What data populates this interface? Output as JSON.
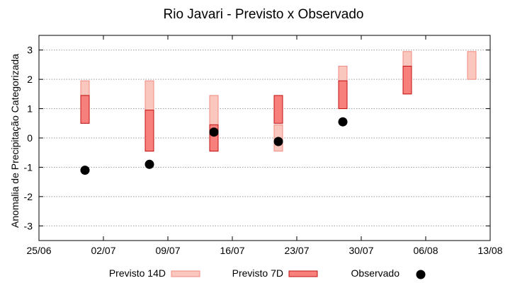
{
  "chart_data": {
    "type": "range-bars-with-points",
    "title": "Rio Javari - Previsto x Observado",
    "ylabel": "Anomalia de Precipitação Categorizada",
    "xlabel": "",
    "x_ticks": [
      "25/06",
      "02/07",
      "09/07",
      "16/07",
      "23/07",
      "30/07",
      "06/08",
      "13/08"
    ],
    "y_ticks": [
      "3",
      "2",
      "1",
      "0",
      "-1",
      "-2",
      "-3"
    ],
    "xlim": [
      "2024-06-25",
      "2024-08-13"
    ],
    "ylim": [
      -3.5,
      3.5
    ],
    "grid": true,
    "legend_position": "bottom",
    "series": [
      {
        "name": "Previsto 14D",
        "color": "#f9c7be",
        "edge": "#f08a82",
        "points": [
          {
            "x": "2024-06-30",
            "low": 0.5,
            "high": 1.95
          },
          {
            "x": "2024-07-07",
            "low": -0.45,
            "high": 1.95
          },
          {
            "x": "2024-07-14",
            "low": -0.45,
            "high": 1.45
          },
          {
            "x": "2024-07-21",
            "low": -0.45,
            "high": 0.45
          },
          {
            "x": "2024-07-28",
            "low": 1.0,
            "high": 2.45
          },
          {
            "x": "2024-08-04",
            "low": 1.5,
            "high": 2.95
          },
          {
            "x": "2024-08-11",
            "low": 2.0,
            "high": 2.95
          }
        ]
      },
      {
        "name": "Previsto 7D",
        "color": "#f77f7c",
        "edge": "#c01010",
        "points": [
          {
            "x": "2024-06-30",
            "low": 0.5,
            "high": 1.45
          },
          {
            "x": "2024-07-07",
            "low": -0.45,
            "high": 0.95
          },
          {
            "x": "2024-07-14",
            "low": -0.45,
            "high": 0.45
          },
          {
            "x": "2024-07-21",
            "low": 0.5,
            "high": 1.45
          },
          {
            "x": "2024-07-28",
            "low": 1.0,
            "high": 1.95
          },
          {
            "x": "2024-08-04",
            "low": 1.5,
            "high": 2.45
          }
        ]
      },
      {
        "name": "Observado",
        "color": "#000000",
        "points": [
          {
            "x": "2024-06-30",
            "y": -1.1
          },
          {
            "x": "2024-07-07",
            "y": -0.9
          },
          {
            "x": "2024-07-14",
            "y": 0.2
          },
          {
            "x": "2024-07-21",
            "y": -0.12
          },
          {
            "x": "2024-07-28",
            "y": 0.55
          }
        ]
      }
    ]
  }
}
